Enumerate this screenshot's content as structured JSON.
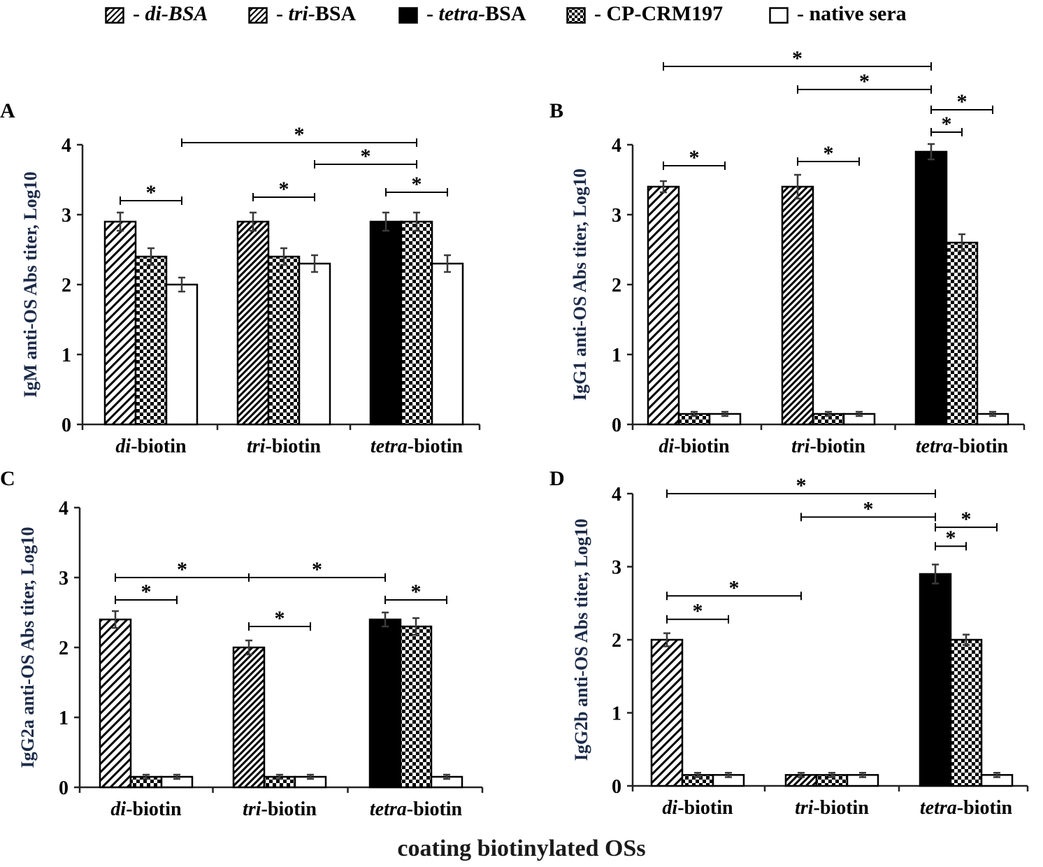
{
  "legend": [
    {
      "key": "di",
      "prefix": "- ",
      "ital": "di-BSA",
      "rest": ""
    },
    {
      "key": "tri",
      "prefix": "- ",
      "ital": "tri-",
      "rest": "BSA"
    },
    {
      "key": "tetra",
      "prefix": "- ",
      "ital": "tetra-",
      "rest": "BSA"
    },
    {
      "key": "cp",
      "prefix": "- ",
      "ital": "",
      "rest": "CP-CRM197"
    },
    {
      "key": "native",
      "prefix": "- ",
      "ital": "",
      "rest": "native sera"
    }
  ],
  "x_axis_label": "coating biotinylated OSs",
  "star": "*",
  "colors": {
    "ink": "#000000",
    "axis": "#222222",
    "ylabel": "#1b2a48"
  },
  "chart_data": [
    {
      "panel": "A",
      "type": "bar",
      "ylabel": "IgM anti-OS Abs titer, Log10",
      "ylim": [
        0,
        4
      ],
      "yticks": [
        "0",
        "1",
        "2",
        "3",
        "4"
      ],
      "categories": [
        {
          "ital": "di-",
          "rest": "biotin"
        },
        {
          "ital": "tri-",
          "rest": "biotin"
        },
        {
          "ital": "tetra-",
          "rest": "biotin"
        }
      ],
      "groups": [
        [
          {
            "s": "di",
            "v": 2.9,
            "e": 0.13
          },
          {
            "s": "cp",
            "v": 2.4,
            "e": 0.12
          },
          {
            "s": "native",
            "v": 2.0,
            "e": 0.1
          }
        ],
        [
          {
            "s": "tri",
            "v": 2.9,
            "e": 0.13
          },
          {
            "s": "cp",
            "v": 2.4,
            "e": 0.12
          },
          {
            "s": "native",
            "v": 2.3,
            "e": 0.12
          }
        ],
        [
          {
            "s": "tetra",
            "v": 2.9,
            "e": 0.13
          },
          {
            "s": "cp",
            "v": 2.9,
            "e": 0.13
          },
          {
            "s": "native",
            "v": 2.3,
            "e": 0.12
          }
        ]
      ],
      "sig": [
        {
          "from": [
            0,
            0
          ],
          "to": [
            0,
            2
          ],
          "y": 3.2
        },
        {
          "from": [
            1,
            0
          ],
          "to": [
            1,
            2
          ],
          "y": 3.25
        },
        {
          "from": [
            2,
            0
          ],
          "to": [
            2,
            2
          ],
          "y": 3.32
        },
        {
          "from": [
            1,
            2
          ],
          "to": [
            2,
            1
          ],
          "y": 3.72
        },
        {
          "from": [
            0,
            2
          ],
          "to": [
            2,
            1
          ],
          "y": 4.03
        }
      ]
    },
    {
      "panel": "B",
      "type": "bar",
      "ylabel": "IgG1 anti-OS Abs titer, Log10",
      "ylim": [
        0,
        4
      ],
      "yticks": [
        "0",
        "1",
        "2",
        "3",
        "4"
      ],
      "categories": [
        {
          "ital": "di-",
          "rest": "biotin"
        },
        {
          "ital": "tri-",
          "rest": "biotin"
        },
        {
          "ital": "tetra-",
          "rest": "biotin"
        }
      ],
      "groups": [
        [
          {
            "s": "di",
            "v": 3.4,
            "e": 0.08
          },
          {
            "s": "cp",
            "v": 0.15,
            "e": 0.03
          },
          {
            "s": "native",
            "v": 0.15,
            "e": 0.03
          }
        ],
        [
          {
            "s": "tri",
            "v": 3.4,
            "e": 0.17
          },
          {
            "s": "cp",
            "v": 0.15,
            "e": 0.03
          },
          {
            "s": "native",
            "v": 0.15,
            "e": 0.03
          }
        ],
        [
          {
            "s": "tetra",
            "v": 3.9,
            "e": 0.11
          },
          {
            "s": "cp",
            "v": 2.6,
            "e": 0.12
          },
          {
            "s": "native",
            "v": 0.15,
            "e": 0.03
          }
        ]
      ],
      "sig": [
        {
          "from": [
            0,
            0
          ],
          "to": [
            0,
            2
          ],
          "y": 3.7
        },
        {
          "from": [
            1,
            0
          ],
          "to": [
            1,
            2
          ],
          "y": 3.76
        },
        {
          "from": [
            2,
            0
          ],
          "to": [
            2,
            1
          ],
          "y": 4.18
        },
        {
          "from": [
            2,
            0
          ],
          "to": [
            2,
            2
          ],
          "y": 4.5
        },
        {
          "from": [
            1,
            0
          ],
          "to": [
            2,
            0
          ],
          "y": 4.79
        },
        {
          "from": [
            0,
            0
          ],
          "to": [
            2,
            0
          ],
          "y": 5.12
        }
      ]
    },
    {
      "panel": "C",
      "type": "bar",
      "ylabel": "IgG2a anti-OS Abs titer, Log10",
      "ylim": [
        0,
        4
      ],
      "yticks": [
        "0",
        "1",
        "2",
        "3",
        "4"
      ],
      "categories": [
        {
          "ital": "di-",
          "rest": "biotin"
        },
        {
          "ital": "tri-",
          "rest": "biotin"
        },
        {
          "ital": "tetra-",
          "rest": "biotin"
        }
      ],
      "groups": [
        [
          {
            "s": "di",
            "v": 2.4,
            "e": 0.12
          },
          {
            "s": "cp",
            "v": 0.15,
            "e": 0.03
          },
          {
            "s": "native",
            "v": 0.15,
            "e": 0.03
          }
        ],
        [
          {
            "s": "tri",
            "v": 2.0,
            "e": 0.1
          },
          {
            "s": "cp",
            "v": 0.15,
            "e": 0.03
          },
          {
            "s": "native",
            "v": 0.15,
            "e": 0.03
          }
        ],
        [
          {
            "s": "tetra",
            "v": 2.4,
            "e": 0.1
          },
          {
            "s": "cp",
            "v": 2.3,
            "e": 0.12
          },
          {
            "s": "native",
            "v": 0.15,
            "e": 0.03
          }
        ]
      ],
      "sig": [
        {
          "from": [
            0,
            0
          ],
          "to": [
            0,
            2
          ],
          "y": 2.68
        },
        {
          "from": [
            1,
            0
          ],
          "to": [
            1,
            2
          ],
          "y": 2.3
        },
        {
          "from": [
            2,
            0
          ],
          "to": [
            2,
            2
          ],
          "y": 2.68
        },
        {
          "from": [
            0,
            0
          ],
          "to": [
            1,
            0
          ],
          "y": 3.0
        },
        {
          "from": [
            1,
            0
          ],
          "to": [
            2,
            0
          ],
          "y": 3.0
        }
      ]
    },
    {
      "panel": "D",
      "type": "bar",
      "ylabel": "IgG2b anti-OS Abs titer, Log10",
      "ylim": [
        0,
        4
      ],
      "yticks": [
        "0",
        "1",
        "2",
        "3",
        "4"
      ],
      "categories": [
        {
          "ital": "di-",
          "rest": "biotin"
        },
        {
          "ital": "tri-",
          "rest": "biotin"
        },
        {
          "ital": "tetra-",
          "rest": "biotin"
        }
      ],
      "groups": [
        [
          {
            "s": "di",
            "v": 2.0,
            "e": 0.09
          },
          {
            "s": "cp",
            "v": 0.15,
            "e": 0.03
          },
          {
            "s": "native",
            "v": 0.15,
            "e": 0.03
          }
        ],
        [
          {
            "s": "tri",
            "v": 0.15,
            "e": 0.03
          },
          {
            "s": "cp",
            "v": 0.15,
            "e": 0.03
          },
          {
            "s": "native",
            "v": 0.15,
            "e": 0.03
          }
        ],
        [
          {
            "s": "tetra",
            "v": 2.9,
            "e": 0.13
          },
          {
            "s": "cp",
            "v": 2.0,
            "e": 0.07
          },
          {
            "s": "native",
            "v": 0.15,
            "e": 0.03
          }
        ]
      ],
      "sig": [
        {
          "from": [
            0,
            0
          ],
          "to": [
            0,
            2
          ],
          "y": 2.28
        },
        {
          "from": [
            0,
            0
          ],
          "to": [
            1,
            0
          ],
          "y": 2.6
        },
        {
          "from": [
            2,
            0
          ],
          "to": [
            2,
            1
          ],
          "y": 3.28
        },
        {
          "from": [
            2,
            0
          ],
          "to": [
            2,
            2
          ],
          "y": 3.54
        },
        {
          "from": [
            1,
            0
          ],
          "to": [
            2,
            0
          ],
          "y": 3.68
        },
        {
          "from": [
            0,
            0
          ],
          "to": [
            2,
            0
          ],
          "y": 4.0
        }
      ]
    }
  ]
}
